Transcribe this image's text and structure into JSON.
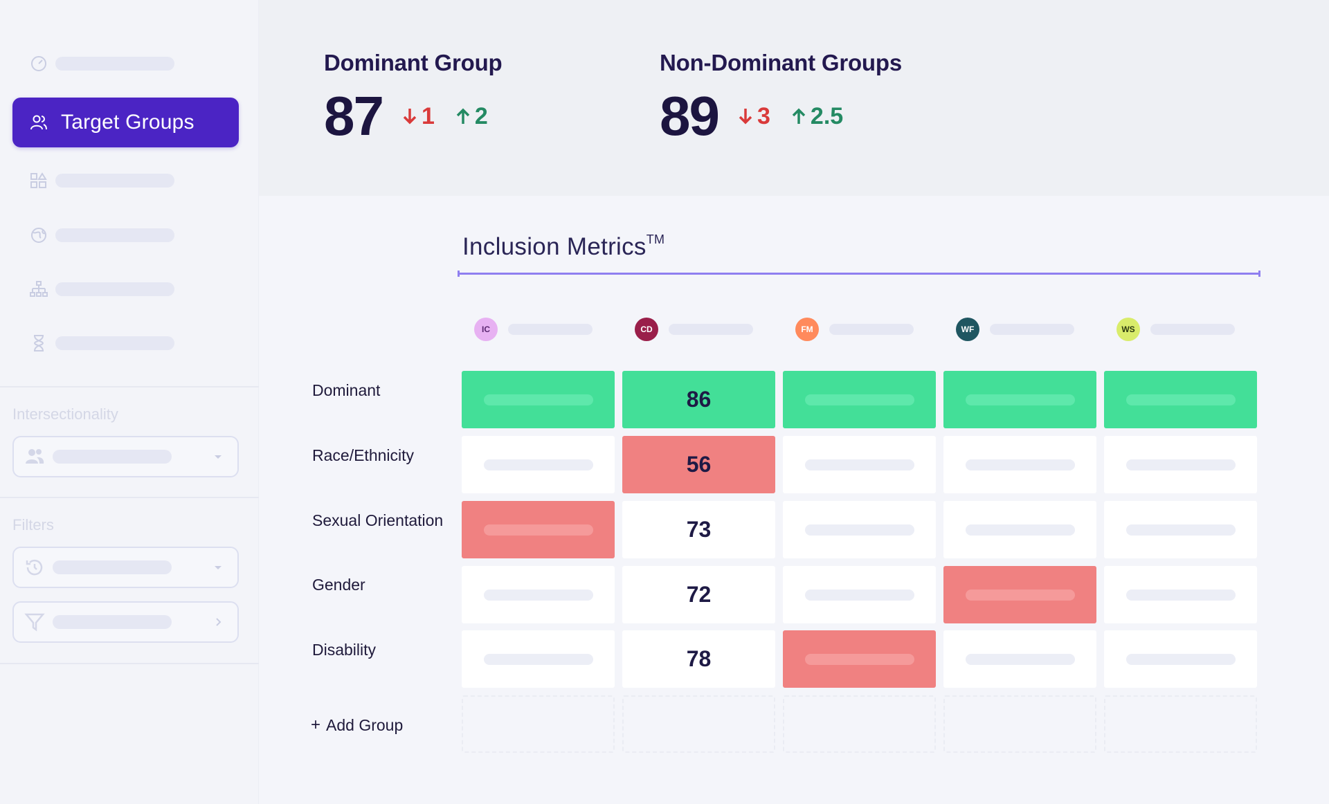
{
  "sidebar": {
    "active_item_label": "Target Groups",
    "sections": {
      "intersectionality": "Intersectionality",
      "filters": "Filters"
    },
    "colors": {
      "active_bg": "#4b24c4",
      "muted": "#d4d7e6"
    }
  },
  "summary": {
    "dominant": {
      "title": "Dominant Group",
      "value": "87",
      "down": "1",
      "up": "2"
    },
    "non_dominant": {
      "title": "Non-Dominant Groups",
      "value": "89",
      "down": "3",
      "up": "2.5"
    }
  },
  "inclusion": {
    "title": "Inclusion Metrics",
    "trademark": "TM",
    "columns": [
      {
        "initials": "IC",
        "bg": "#e7b1f2",
        "fg": "#5a2670"
      },
      {
        "initials": "CD",
        "bg": "#9a1f4a",
        "fg": "#ffffff"
      },
      {
        "initials": "FM",
        "bg": "#ff8a5c",
        "fg": "#ffffff"
      },
      {
        "initials": "WF",
        "bg": "#1f5661",
        "fg": "#ffffff"
      },
      {
        "initials": "WS",
        "bg": "#d9ec6b",
        "fg": "#2c3a10"
      }
    ],
    "rows": [
      {
        "label": "Dominant",
        "cells": [
          {
            "state": "green",
            "value": ""
          },
          {
            "state": "green",
            "value": "86"
          },
          {
            "state": "green",
            "value": ""
          },
          {
            "state": "green",
            "value": ""
          },
          {
            "state": "green",
            "value": ""
          }
        ]
      },
      {
        "label": "Race/Ethnicity",
        "cells": [
          {
            "state": "white",
            "value": ""
          },
          {
            "state": "red",
            "value": "56"
          },
          {
            "state": "white",
            "value": ""
          },
          {
            "state": "white",
            "value": ""
          },
          {
            "state": "white",
            "value": ""
          }
        ]
      },
      {
        "label": "Sexual Orientation",
        "cells": [
          {
            "state": "red",
            "value": ""
          },
          {
            "state": "white",
            "value": "73"
          },
          {
            "state": "white",
            "value": ""
          },
          {
            "state": "white",
            "value": ""
          },
          {
            "state": "white",
            "value": ""
          }
        ]
      },
      {
        "label": "Gender",
        "cells": [
          {
            "state": "white",
            "value": ""
          },
          {
            "state": "white",
            "value": "72"
          },
          {
            "state": "white",
            "value": ""
          },
          {
            "state": "red",
            "value": ""
          },
          {
            "state": "white",
            "value": ""
          }
        ]
      },
      {
        "label": "Disability",
        "cells": [
          {
            "state": "white",
            "value": ""
          },
          {
            "state": "white",
            "value": "78"
          },
          {
            "state": "red",
            "value": ""
          },
          {
            "state": "white",
            "value": ""
          },
          {
            "state": "white",
            "value": ""
          }
        ]
      }
    ],
    "add_group_label": "Add Group",
    "colors": {
      "green": "#43df98",
      "red": "#f08181",
      "accent_line": "#8f7ff0"
    }
  }
}
